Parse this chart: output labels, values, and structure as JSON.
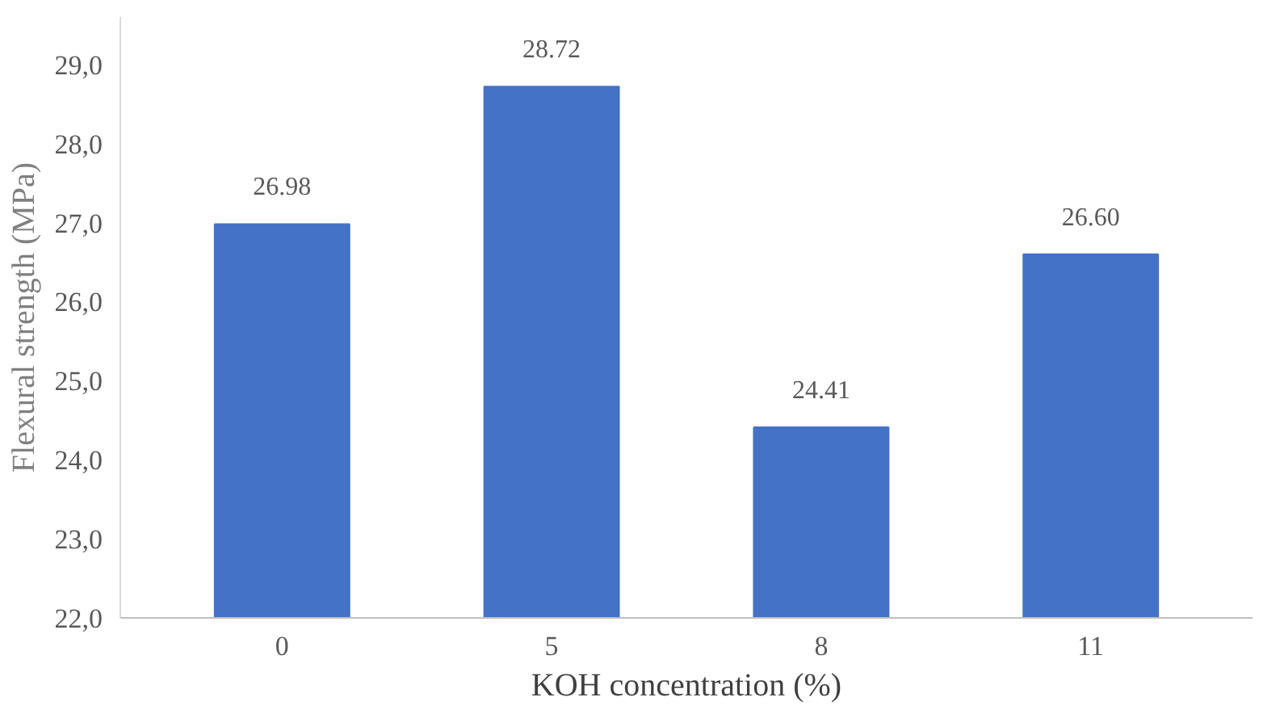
{
  "chart_data": {
    "type": "bar",
    "xlabel": "KOH concentration (%)",
    "ylabel": "Flexural strength (MPa)",
    "categories": [
      "0",
      "5",
      "8",
      "11"
    ],
    "values": [
      26.98,
      28.72,
      24.41,
      26.6
    ],
    "value_labels": [
      "26.98",
      "28.72",
      "24.41",
      "26.60"
    ],
    "color": "#4472c4",
    "ylim": [
      22,
      29.6
    ],
    "yticks": [
      {
        "value": 22,
        "label": "22,0"
      },
      {
        "value": 23,
        "label": "23,0"
      },
      {
        "value": 24,
        "label": "24,0"
      },
      {
        "value": 25,
        "label": "25,0"
      },
      {
        "value": 26,
        "label": "26,0"
      },
      {
        "value": 27,
        "label": "27,0"
      },
      {
        "value": 28,
        "label": "28,0"
      },
      {
        "value": 29,
        "label": "29,0"
      }
    ],
    "grid": false
  }
}
